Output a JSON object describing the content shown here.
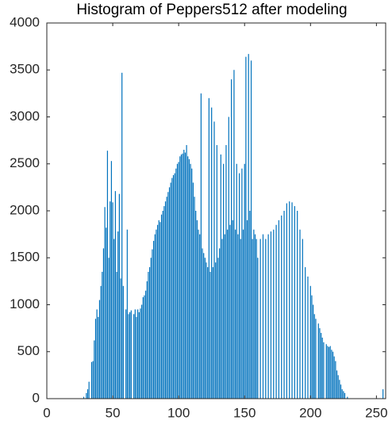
{
  "chart_data": {
    "type": "bar",
    "title": "Histogram of Peppers512 after modeling",
    "color": "#0072bd",
    "x": [
      28,
      30,
      31,
      32,
      34,
      35,
      36,
      37,
      38,
      39,
      40,
      41,
      42,
      43,
      44,
      45,
      46,
      47,
      48,
      49,
      50,
      51,
      52,
      53,
      54,
      55,
      56,
      57,
      58,
      60,
      61,
      62,
      63,
      64,
      66,
      67,
      68,
      69,
      70,
      71,
      72,
      73,
      74,
      75,
      76,
      77,
      78,
      79,
      80,
      81,
      82,
      83,
      84,
      85,
      86,
      87,
      88,
      89,
      90,
      91,
      92,
      93,
      94,
      95,
      96,
      97,
      98,
      99,
      100,
      101,
      102,
      103,
      104,
      105,
      106,
      107,
      108,
      109,
      110,
      111,
      112,
      113,
      114,
      115,
      116,
      117,
      118,
      119,
      120,
      121,
      122,
      123,
      124,
      125,
      126,
      127,
      128,
      129,
      130,
      131,
      132,
      133,
      134,
      135,
      136,
      137,
      138,
      139,
      140,
      141,
      142,
      143,
      144,
      145,
      146,
      147,
      148,
      149,
      150,
      151,
      152,
      153,
      154,
      155,
      156,
      157,
      158,
      159,
      160,
      162,
      164,
      166,
      168,
      170,
      172,
      174,
      176,
      178,
      180,
      182,
      184,
      186,
      188,
      190,
      192,
      194,
      196,
      198,
      200,
      201,
      202,
      203,
      204,
      206,
      207,
      208,
      209,
      210,
      212,
      213,
      214,
      215,
      216,
      217,
      218,
      219,
      220,
      221,
      222,
      223,
      224,
      225,
      226,
      228,
      255
    ],
    "values": [
      20,
      60,
      100,
      180,
      390,
      400,
      620,
      850,
      950,
      870,
      1050,
      1200,
      1350,
      1600,
      2040,
      1820,
      2640,
      1500,
      2100,
      2530,
      2090,
      1700,
      2210,
      1350,
      1780,
      2180,
      1280,
      3470,
      1200,
      950,
      1800,
      900,
      920,
      940,
      900,
      950,
      870,
      950,
      920,
      960,
      1000,
      1080,
      1100,
      1150,
      1250,
      1350,
      1400,
      1500,
      1590,
      1680,
      1750,
      1800,
      1850,
      1900,
      1880,
      1960,
      2000,
      2050,
      2100,
      2150,
      2200,
      2250,
      2300,
      2350,
      2380,
      2400,
      2450,
      2500,
      2520,
      2580,
      2600,
      2610,
      2650,
      2620,
      2700,
      2580,
      2550,
      2500,
      2450,
      2300,
      2150,
      2000,
      1900,
      1800,
      1750,
      3250,
      1600,
      1550,
      1500,
      1450,
      1400,
      3200,
      1350,
      3100,
      1400,
      2950,
      1450,
      2700,
      1500,
      1600,
      2600,
      1700,
      2500,
      1750,
      2700,
      1800,
      3000,
      1850,
      3400,
      1900,
      3500,
      1800,
      2500,
      1750,
      2400,
      1700,
      2450,
      1800,
      2500,
      3640,
      1900,
      3670,
      2000,
      3600,
      1700,
      1800,
      1750,
      1700,
      1500,
      1700,
      1750,
      1700,
      1750,
      1780,
      1800,
      1850,
      1900,
      1950,
      2000,
      2080,
      2100,
      2090,
      2050,
      2000,
      1800,
      1700,
      1400,
      1300,
      1200,
      1100,
      1000,
      900,
      850,
      800,
      750,
      700,
      650,
      600,
      580,
      560,
      550,
      560,
      520,
      500,
      450,
      400,
      300,
      250,
      200,
      150,
      100,
      80,
      60,
      20,
      100
    ],
    "xlim": [
      0,
      257
    ],
    "xticks": [
      0,
      50,
      100,
      150,
      200,
      250
    ],
    "ylim": [
      0,
      4000
    ],
    "yticks": [
      0,
      500,
      1000,
      1500,
      2000,
      2500,
      3000,
      3500,
      4000
    ]
  }
}
